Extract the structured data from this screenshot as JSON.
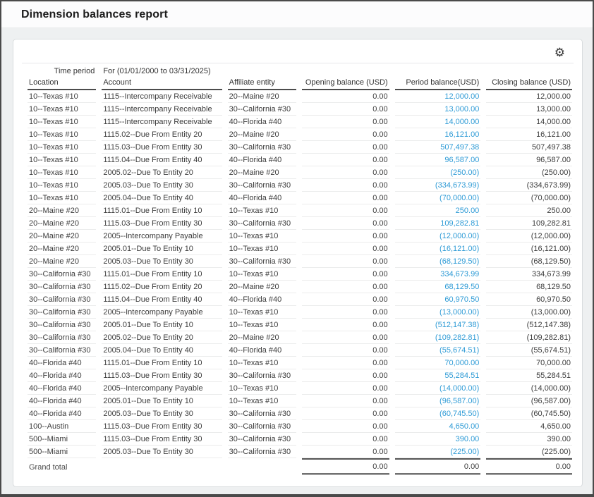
{
  "window": {
    "title": "Dimension balances report"
  },
  "toolbar": {
    "settings_icon": "⚙"
  },
  "colors": {
    "link_blue": "#2e9bd6",
    "header_rule": "#4c4c4c"
  },
  "report": {
    "time_period_label": "Time period",
    "time_period_value": "For (01/01/2000 to 03/31/2025)",
    "columns": [
      "Location",
      "Account",
      "Affiliate entity",
      "Opening balance (USD)",
      "Period balance(USD)",
      "Closing balance (USD)"
    ],
    "rows": [
      [
        "10--Texas #10",
        "1115--Intercompany Receivable",
        "20--Maine #20",
        "0.00",
        "12,000.00",
        "12,000.00"
      ],
      [
        "10--Texas #10",
        "1115--Intercompany Receivable",
        "30--California #30",
        "0.00",
        "13,000.00",
        "13,000.00"
      ],
      [
        "10--Texas #10",
        "1115--Intercompany Receivable",
        "40--Florida #40",
        "0.00",
        "14,000.00",
        "14,000.00"
      ],
      [
        "10--Texas #10",
        "1115.02--Due From Entity 20",
        "20--Maine #20",
        "0.00",
        "16,121.00",
        "16,121.00"
      ],
      [
        "10--Texas #10",
        "1115.03--Due From Entity 30",
        "30--California #30",
        "0.00",
        "507,497.38",
        "507,497.38"
      ],
      [
        "10--Texas #10",
        "1115.04--Due From Entity 40",
        "40--Florida #40",
        "0.00",
        "96,587.00",
        "96,587.00"
      ],
      [
        "10--Texas #10",
        "2005.02--Due To Entity 20",
        "20--Maine #20",
        "0.00",
        "(250.00)",
        "(250.00)"
      ],
      [
        "10--Texas #10",
        "2005.03--Due To Entity 30",
        "30--California #30",
        "0.00",
        "(334,673.99)",
        "(334,673.99)"
      ],
      [
        "10--Texas #10",
        "2005.04--Due To Entity 40",
        "40--Florida #40",
        "0.00",
        "(70,000.00)",
        "(70,000.00)"
      ],
      [
        "20--Maine #20",
        "1115.01--Due From Entity 10",
        "10--Texas #10",
        "0.00",
        "250.00",
        "250.00"
      ],
      [
        "20--Maine #20",
        "1115.03--Due From Entity 30",
        "30--California #30",
        "0.00",
        "109,282.81",
        "109,282.81"
      ],
      [
        "20--Maine #20",
        "2005--Intercompany Payable",
        "10--Texas #10",
        "0.00",
        "(12,000.00)",
        "(12,000.00)"
      ],
      [
        "20--Maine #20",
        "2005.01--Due To Entity 10",
        "10--Texas #10",
        "0.00",
        "(16,121.00)",
        "(16,121.00)"
      ],
      [
        "20--Maine #20",
        "2005.03--Due To Entity 30",
        "30--California #30",
        "0.00",
        "(68,129.50)",
        "(68,129.50)"
      ],
      [
        "30--California #30",
        "1115.01--Due From Entity 10",
        "10--Texas #10",
        "0.00",
        "334,673.99",
        "334,673.99"
      ],
      [
        "30--California #30",
        "1115.02--Due From Entity 20",
        "20--Maine #20",
        "0.00",
        "68,129.50",
        "68,129.50"
      ],
      [
        "30--California #30",
        "1115.04--Due From Entity 40",
        "40--Florida #40",
        "0.00",
        "60,970.50",
        "60,970.50"
      ],
      [
        "30--California #30",
        "2005--Intercompany Payable",
        "10--Texas #10",
        "0.00",
        "(13,000.00)",
        "(13,000.00)"
      ],
      [
        "30--California #30",
        "2005.01--Due To Entity 10",
        "10--Texas #10",
        "0.00",
        "(512,147.38)",
        "(512,147.38)"
      ],
      [
        "30--California #30",
        "2005.02--Due To Entity 20",
        "20--Maine #20",
        "0.00",
        "(109,282.81)",
        "(109,282.81)"
      ],
      [
        "30--California #30",
        "2005.04--Due To Entity 40",
        "40--Florida #40",
        "0.00",
        "(55,674.51)",
        "(55,674.51)"
      ],
      [
        "40--Florida #40",
        "1115.01--Due From Entity 10",
        "10--Texas #10",
        "0.00",
        "70,000.00",
        "70,000.00"
      ],
      [
        "40--Florida #40",
        "1115.03--Due From Entity 30",
        "30--California #30",
        "0.00",
        "55,284.51",
        "55,284.51"
      ],
      [
        "40--Florida #40",
        "2005--Intercompany Payable",
        "10--Texas #10",
        "0.00",
        "(14,000.00)",
        "(14,000.00)"
      ],
      [
        "40--Florida #40",
        "2005.01--Due To Entity 10",
        "10--Texas #10",
        "0.00",
        "(96,587.00)",
        "(96,587.00)"
      ],
      [
        "40--Florida #40",
        "2005.03--Due To Entity 30",
        "30--California #30",
        "0.00",
        "(60,745.50)",
        "(60,745.50)"
      ],
      [
        "100--Austin",
        "1115.03--Due From Entity 30",
        "30--California #30",
        "0.00",
        "4,650.00",
        "4,650.00"
      ],
      [
        "500--Miami",
        "1115.03--Due From Entity 30",
        "30--California #30",
        "0.00",
        "390.00",
        "390.00"
      ],
      [
        "500--Miami",
        "2005.03--Due To Entity 30",
        "30--California #30",
        "0.00",
        "(225.00)",
        "(225.00)"
      ]
    ],
    "grand_total": {
      "label": "Grand total",
      "opening": "0.00",
      "period": "0.00",
      "closing": "0.00"
    }
  }
}
